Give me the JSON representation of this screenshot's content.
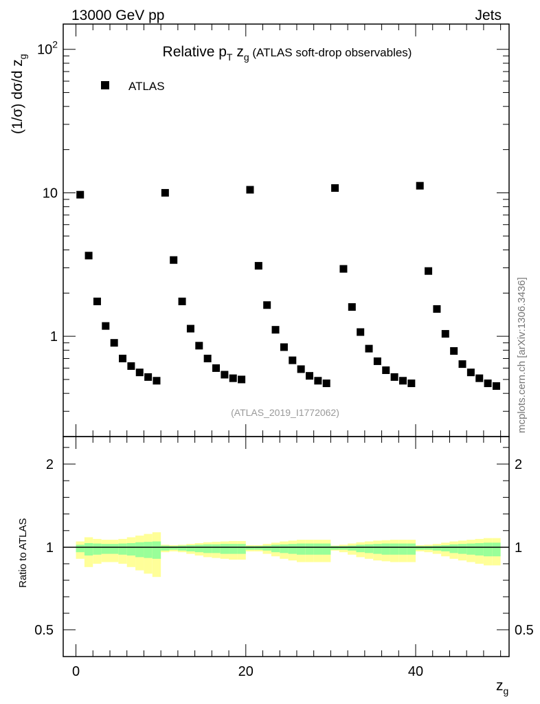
{
  "header": {
    "left": "13000 GeV pp",
    "right": "Jets"
  },
  "side_text": "mcplots.cern.ch [arXiv:1306.3436]",
  "chart_data": [
    {
      "type": "scatter",
      "title": "Relative p_T z_g (ATLAS soft-drop observables)",
      "title_parts": {
        "main": "Relative p",
        "sub1": "T",
        "mid": " z",
        "sub2": "g",
        "tail": " (ATLAS soft-drop observables)"
      },
      "ylabel": "(1/σ) dσ/d z_g",
      "ylabel_parts": {
        "main": "(1/σ) dσ/d z",
        "sub": "g"
      },
      "xlabel": "z_g",
      "xlabel_parts": {
        "main": "z",
        "sub": "g"
      },
      "yscale": "log",
      "ylim": [
        0.2,
        150
      ],
      "xlim": [
        -1.5,
        51
      ],
      "ytick_labels": [
        "1",
        "10",
        "10^2"
      ],
      "xtick_labels": [
        "0",
        "20",
        "40"
      ],
      "legend": {
        "position": "top-left",
        "entries": [
          {
            "name": "ATLAS",
            "marker": "square",
            "color": "#000000"
          }
        ]
      },
      "annotation": "(ATLAS_2019_I1772062)",
      "series": [
        {
          "name": "ATLAS",
          "x": [
            0.5,
            1.5,
            2.5,
            3.5,
            4.5,
            5.5,
            6.5,
            7.5,
            8.5,
            9.5,
            10.5,
            11.5,
            12.5,
            13.5,
            14.5,
            15.5,
            16.5,
            17.5,
            18.5,
            19.5,
            20.5,
            21.5,
            22.5,
            23.5,
            24.5,
            25.5,
            26.5,
            27.5,
            28.5,
            29.5,
            30.5,
            31.5,
            32.5,
            33.5,
            34.5,
            35.5,
            36.5,
            37.5,
            38.5,
            39.5,
            40.5,
            41.5,
            42.5,
            43.5,
            44.5,
            45.5,
            46.5,
            47.5,
            48.5,
            49.5
          ],
          "y": [
            9.7,
            3.65,
            1.75,
            1.18,
            0.9,
            0.7,
            0.62,
            0.56,
            0.52,
            0.49,
            10.0,
            3.4,
            1.75,
            1.13,
            0.86,
            0.7,
            0.6,
            0.54,
            0.51,
            0.5,
            10.5,
            3.1,
            1.65,
            1.11,
            0.84,
            0.68,
            0.59,
            0.53,
            0.49,
            0.47,
            10.8,
            2.95,
            1.6,
            1.07,
            0.82,
            0.67,
            0.58,
            0.52,
            0.49,
            0.47,
            11.2,
            2.85,
            1.55,
            1.04,
            0.79,
            0.64,
            0.56,
            0.51,
            0.47,
            0.45
          ]
        }
      ]
    },
    {
      "type": "area",
      "ylabel": "Ratio to ATLAS",
      "ylim": [
        0.4,
        2.4
      ],
      "ytick_labels": [
        "0.5",
        "1",
        "2"
      ],
      "reference_line": 1,
      "colors": {
        "inner_band": "#99ff99",
        "outer_band": "#ffff99",
        "marker": "#000000"
      },
      "series": [
        {
          "name": "",
          "x_edges": [
            0,
            1,
            2,
            3,
            4,
            5,
            6,
            7,
            8,
            9,
            10,
            11,
            12,
            13,
            14,
            15,
            16,
            17,
            18,
            19,
            20,
            21,
            22,
            23,
            24,
            25,
            26,
            27,
            28,
            29,
            30,
            31,
            32,
            33,
            34,
            35,
            36,
            37,
            38,
            39,
            40,
            41,
            42,
            43,
            44,
            45,
            46,
            47,
            48,
            49,
            50
          ],
          "inner_err": [
            0.03,
            0.05,
            0.045,
            0.04,
            0.04,
            0.045,
            0.05,
            0.06,
            0.065,
            0.07,
            0.02,
            0.015,
            0.02,
            0.025,
            0.03,
            0.035,
            0.035,
            0.04,
            0.04,
            0.04,
            0.015,
            0.015,
            0.02,
            0.03,
            0.035,
            0.04,
            0.045,
            0.045,
            0.045,
            0.045,
            0.015,
            0.015,
            0.02,
            0.03,
            0.035,
            0.04,
            0.045,
            0.045,
            0.045,
            0.045,
            0.015,
            0.015,
            0.02,
            0.025,
            0.035,
            0.04,
            0.045,
            0.05,
            0.055,
            0.055
          ],
          "outer_err": [
            0.07,
            0.12,
            0.1,
            0.09,
            0.09,
            0.1,
            0.12,
            0.14,
            0.16,
            0.18,
            0.03,
            0.025,
            0.03,
            0.04,
            0.05,
            0.06,
            0.065,
            0.07,
            0.075,
            0.075,
            0.025,
            0.025,
            0.04,
            0.055,
            0.07,
            0.08,
            0.09,
            0.09,
            0.09,
            0.09,
            0.02,
            0.03,
            0.045,
            0.06,
            0.07,
            0.08,
            0.085,
            0.09,
            0.09,
            0.09,
            0.025,
            0.03,
            0.04,
            0.055,
            0.07,
            0.08,
            0.09,
            0.1,
            0.11,
            0.11
          ]
        }
      ]
    }
  ]
}
